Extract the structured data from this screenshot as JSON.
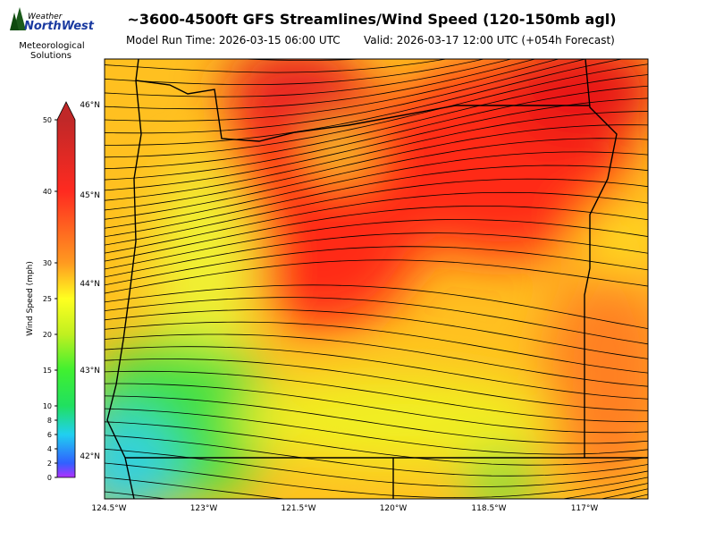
{
  "header": {
    "title": "~3600-4500ft GFS Streamlines/Wind Speed (120-150mb agl)",
    "model_run": "Model Run Time: 2026-03-15 06:00 UTC",
    "valid": "Valid: 2026-03-17 12:00 UTC  (+054h Forecast)"
  },
  "logo": {
    "brand_top": "Weather",
    "brand_bottom": "NorthWest",
    "caption_1": "Meteorological",
    "caption_2": "Solutions"
  },
  "colorbar": {
    "label": "Wind Speed (mph)",
    "range": [
      0,
      50
    ],
    "ticks": [
      0,
      2,
      4,
      6,
      8,
      10,
      15,
      20,
      25,
      30,
      40,
      50
    ]
  },
  "map": {
    "lat_labels": [
      "46°N",
      "45°N",
      "44°N",
      "43°N",
      "42°N"
    ],
    "lon_labels": [
      "124.5°W",
      "123°W",
      "121.5°W",
      "120°W",
      "118.5°W",
      "117°W"
    ]
  }
}
